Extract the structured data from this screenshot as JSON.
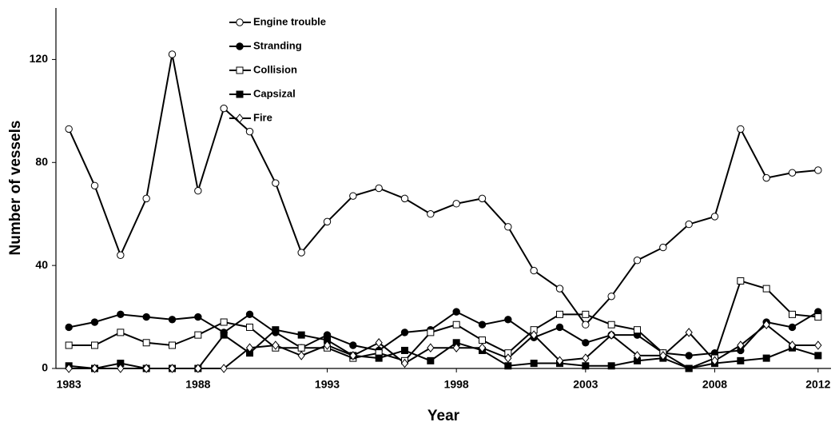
{
  "chart_data": {
    "type": "line",
    "x_label": "Year",
    "y_label": "Number of vessels",
    "x": [
      1983,
      1984,
      1985,
      1986,
      1987,
      1988,
      1989,
      1990,
      1991,
      1992,
      1993,
      1994,
      1995,
      1996,
      1997,
      1998,
      1999,
      2000,
      2001,
      2002,
      2003,
      2004,
      2005,
      2006,
      2007,
      2008,
      2009,
      2010,
      2011,
      2012
    ],
    "xlim": [
      1982.5,
      2012.5
    ],
    "xticks": [
      1983,
      1988,
      1993,
      1998,
      2003,
      2008,
      2012
    ],
    "ylim": [
      0,
      140
    ],
    "yticks": [
      0,
      40,
      80,
      120
    ],
    "legend": "upper-left",
    "series": [
      {
        "name": "Engine trouble",
        "color": "#000000",
        "marker": "circle",
        "filled": false,
        "values": [
          93,
          71,
          44,
          66,
          122,
          69,
          101,
          92,
          72,
          45,
          57,
          67,
          70,
          66,
          60,
          64,
          66,
          55,
          38,
          31,
          17,
          28,
          42,
          47,
          56,
          59,
          93,
          74,
          76,
          77
        ]
      },
      {
        "name": "Stranding",
        "color": "#000000",
        "marker": "circle",
        "filled": true,
        "values": [
          16,
          18,
          21,
          20,
          19,
          20,
          14,
          21,
          14,
          8,
          13,
          9,
          7,
          14,
          15,
          22,
          17,
          19,
          12,
          16,
          10,
          13,
          13,
          6,
          5,
          6,
          7,
          18,
          16,
          22
        ]
      },
      {
        "name": "Collision",
        "color": "#000000",
        "marker": "square",
        "filled": false,
        "values": [
          9,
          9,
          14,
          10,
          9,
          13,
          18,
          16,
          8,
          8,
          8,
          4,
          6,
          3,
          14,
          17,
          11,
          6,
          15,
          21,
          21,
          17,
          15,
          6,
          0,
          4,
          34,
          31,
          21,
          20
        ]
      },
      {
        "name": "Capsizal",
        "color": "#000000",
        "marker": "square",
        "filled": true,
        "values": [
          1,
          0,
          2,
          0,
          0,
          0,
          13,
          6,
          15,
          13,
          11,
          5,
          4,
          7,
          3,
          10,
          7,
          1,
          2,
          2,
          1,
          1,
          3,
          4,
          0,
          2,
          3,
          4,
          8,
          5
        ]
      },
      {
        "name": "Fire",
        "color": "#000000",
        "marker": "diamond",
        "filled": false,
        "values": [
          0,
          0,
          0,
          0,
          0,
          0,
          0,
          8,
          9,
          5,
          9,
          5,
          10,
          2,
          8,
          8,
          8,
          4,
          13,
          3,
          4,
          13,
          5,
          5,
          14,
          3,
          9,
          17,
          9,
          9
        ]
      }
    ]
  }
}
